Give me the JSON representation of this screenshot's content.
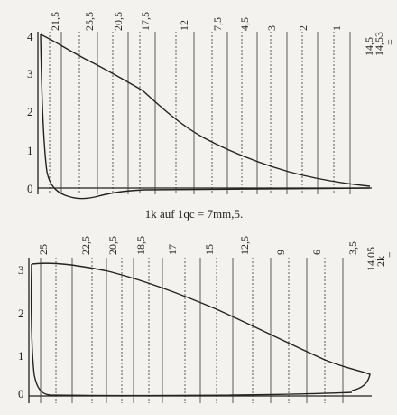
{
  "figures": [
    {
      "y_labels": [
        "4",
        "3",
        "2",
        "1",
        "0"
      ],
      "column_labels": [
        "21,5",
        "25,5",
        "20,5",
        "17,5",
        "12",
        "7,5",
        "4,5",
        "3",
        "2",
        "1"
      ],
      "right_label": [
        "14,5",
        "14,53"
      ],
      "equals": "=",
      "caption": "1k auf 1qc = 7mm,5."
    },
    {
      "y_labels": [
        "3",
        "2",
        "1",
        "0"
      ],
      "column_labels": [
        "25",
        "22,5",
        "20,5",
        "18,5",
        "17",
        "15",
        "12,5",
        "9",
        "6",
        "3,5"
      ],
      "right_label": [
        "14,05",
        "2k"
      ],
      "equals": "="
    }
  ]
}
